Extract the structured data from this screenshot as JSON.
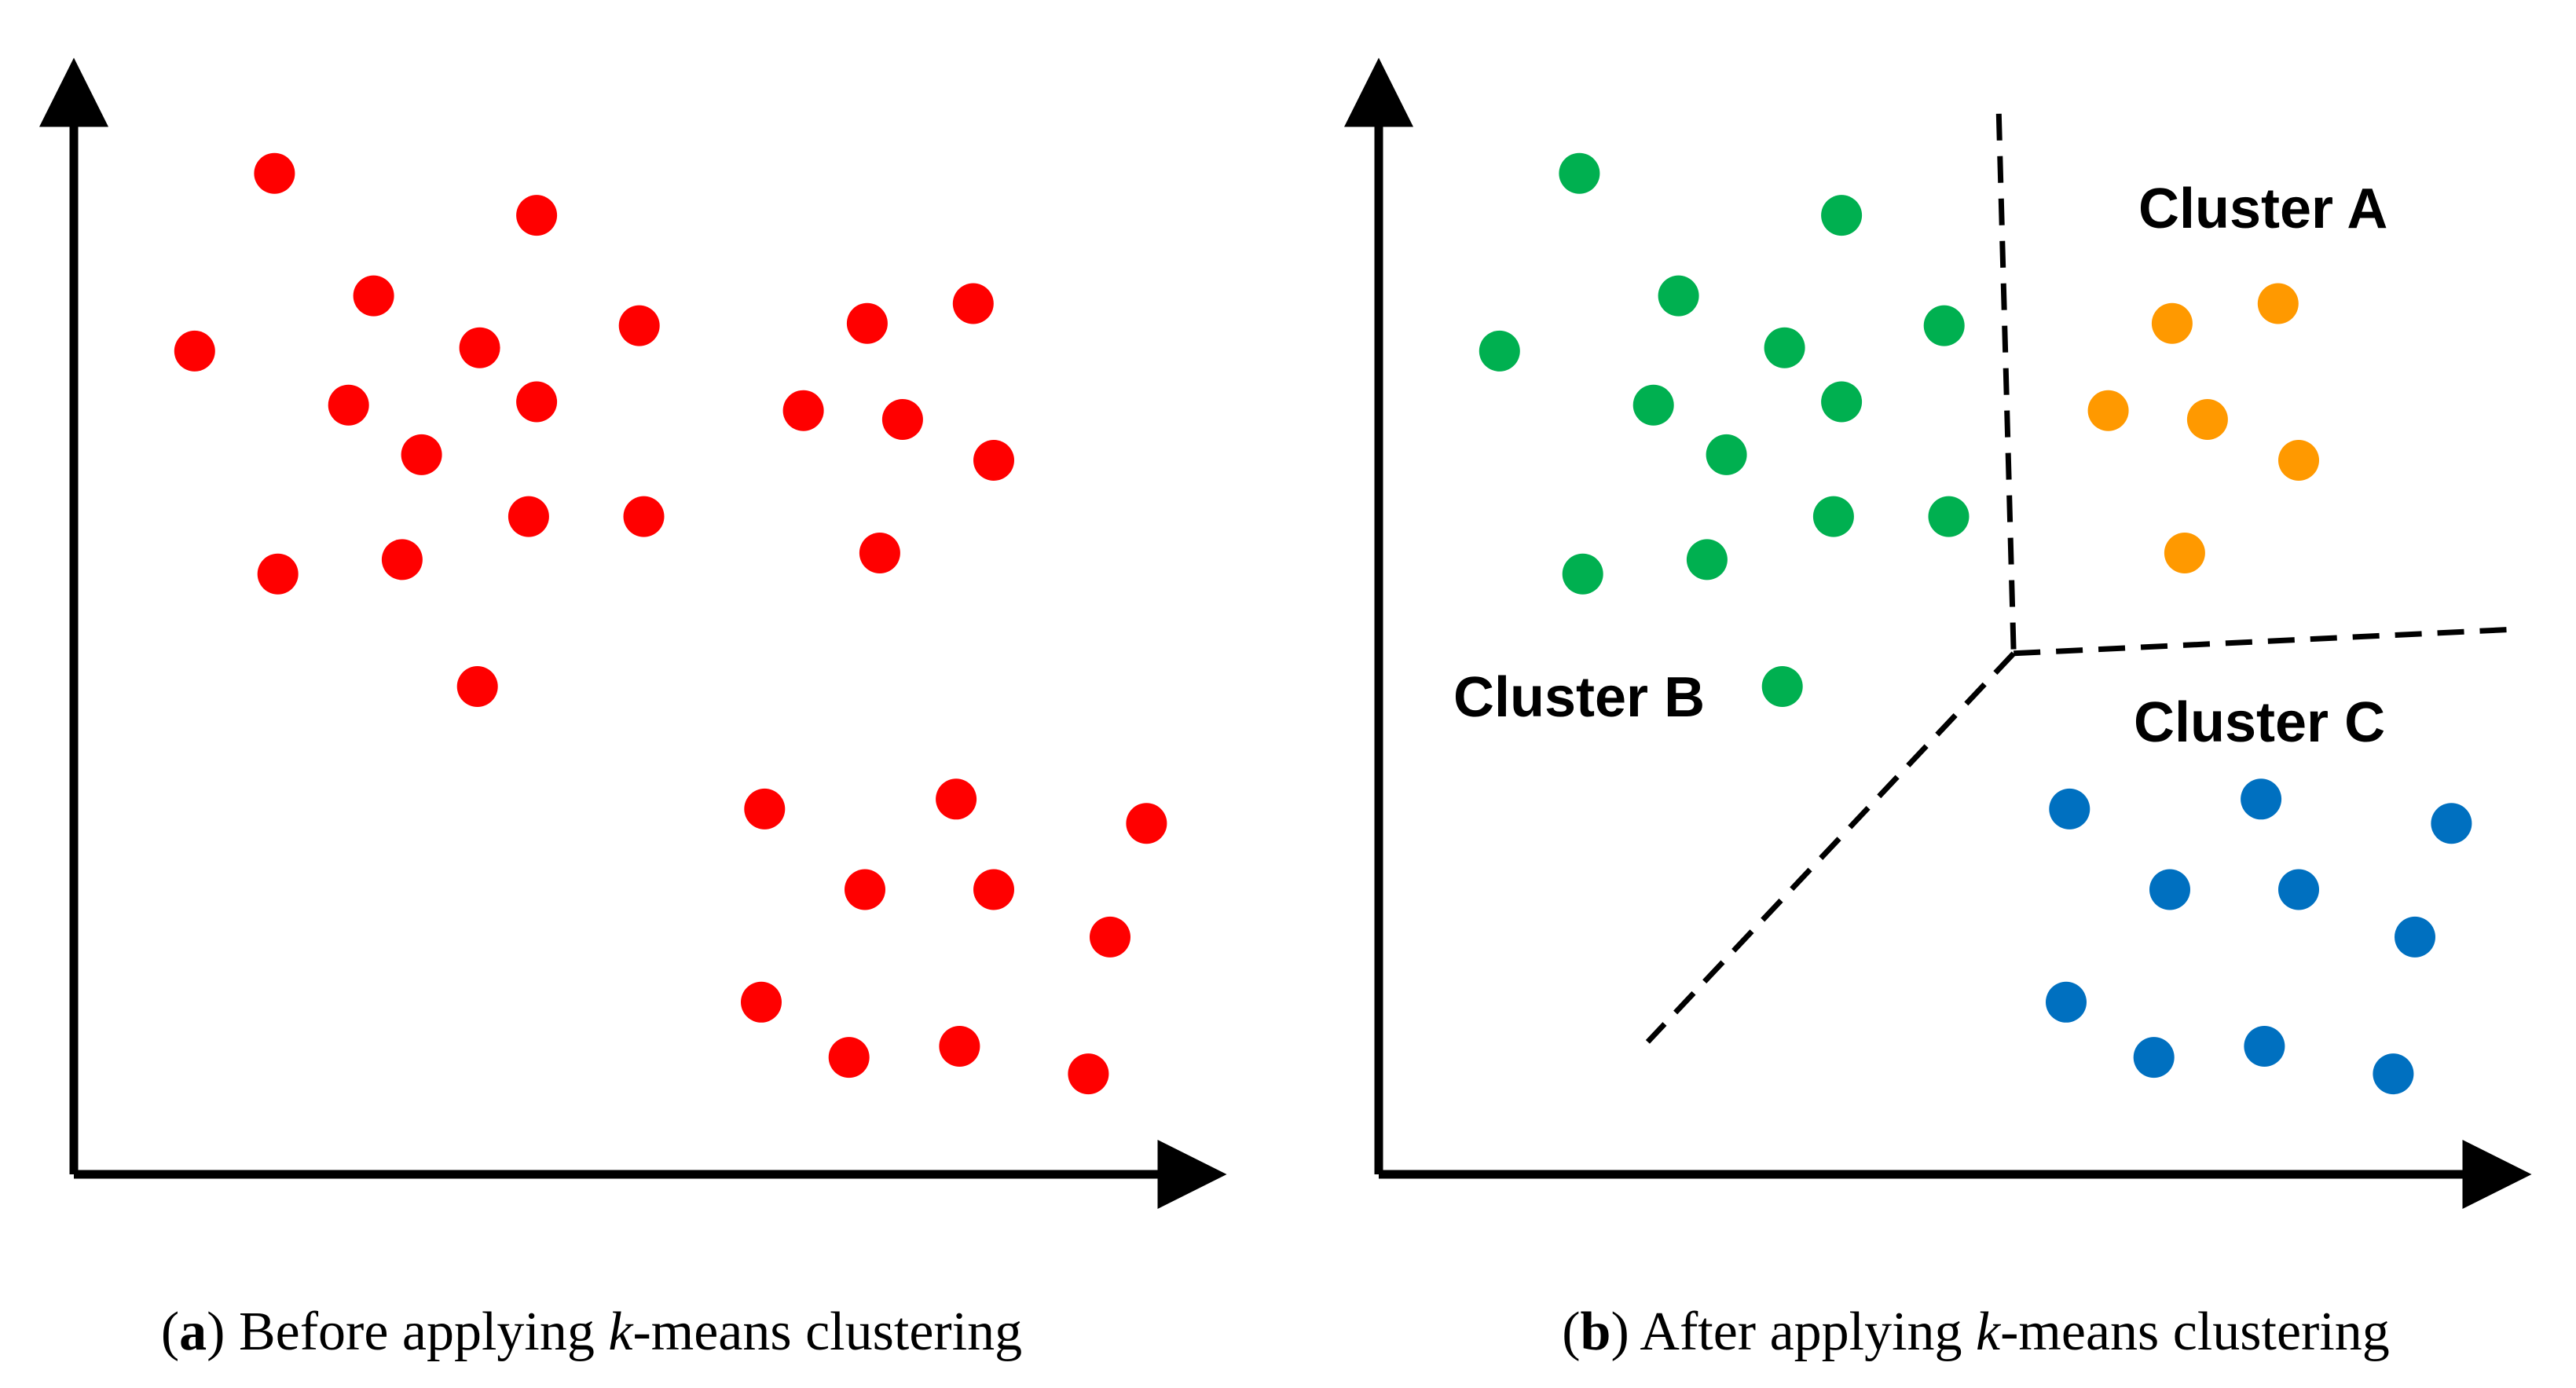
{
  "colors": {
    "raw": "#ff0000",
    "cluster_a": "#ff9900",
    "cluster_b": "#00b050",
    "cluster_c": "#0070c0",
    "axis": "#000000",
    "boundary": "#000000"
  },
  "panel_a": {
    "caption": {
      "open": "(",
      "letter": "a",
      "before": ") Before applying ",
      "k": "k",
      "after": "-means clustering"
    }
  },
  "panel_b": {
    "caption": {
      "open": "(",
      "letter": "b",
      "before": ") After applying ",
      "k": "k",
      "after": "-means clustering"
    },
    "labels": {
      "a": "Cluster A",
      "b": "Cluster B",
      "c": "Cluster C"
    }
  },
  "chart_data": [
    {
      "type": "scatter",
      "title": "",
      "xlabel": "",
      "ylabel": "",
      "xlim": [
        0,
        100
      ],
      "ylim": [
        0,
        100
      ],
      "grid": false,
      "series": [
        {
          "color": "#ff0000",
          "points": [
            [
              17.6,
              90.7
            ],
            [
              40.6,
              86.9
            ],
            [
              26.3,
              79.6
            ],
            [
              10.6,
              74.6
            ],
            [
              35.6,
              74.9
            ],
            [
              49.6,
              76.9
            ],
            [
              24.1,
              69.7
            ],
            [
              40.6,
              70.0
            ],
            [
              30.5,
              65.2
            ],
            [
              39.9,
              59.6
            ],
            [
              50.0,
              59.6
            ],
            [
              28.8,
              55.7
            ],
            [
              17.9,
              54.4
            ],
            [
              35.4,
              44.2
            ],
            [
              69.6,
              77.1
            ],
            [
              78.9,
              78.9
            ],
            [
              64.0,
              69.2
            ],
            [
              72.7,
              68.4
            ],
            [
              80.7,
              64.7
            ],
            [
              70.7,
              56.3
            ],
            [
              60.6,
              33.1
            ],
            [
              77.4,
              34.0
            ],
            [
              94.1,
              31.8
            ],
            [
              69.4,
              25.8
            ],
            [
              80.7,
              25.8
            ],
            [
              90.9,
              21.5
            ],
            [
              60.3,
              15.6
            ],
            [
              68.0,
              10.6
            ],
            [
              77.7,
              11.6
            ],
            [
              89.0,
              9.1
            ]
          ]
        }
      ]
    },
    {
      "type": "scatter",
      "title": "",
      "xlabel": "",
      "ylabel": "",
      "xlim": [
        0,
        100
      ],
      "ylim": [
        0,
        100
      ],
      "grid": false,
      "series": [
        {
          "name": "Cluster A",
          "color": "#ff9900",
          "points": [
            [
              69.6,
              77.1
            ],
            [
              78.9,
              78.9
            ],
            [
              64.0,
              69.2
            ],
            [
              72.7,
              68.4
            ],
            [
              80.7,
              64.7
            ],
            [
              70.7,
              56.3
            ]
          ]
        },
        {
          "name": "Cluster B",
          "color": "#00b050",
          "points": [
            [
              17.6,
              90.7
            ],
            [
              40.6,
              86.9
            ],
            [
              26.3,
              79.6
            ],
            [
              10.6,
              74.6
            ],
            [
              35.6,
              74.9
            ],
            [
              49.6,
              76.9
            ],
            [
              24.1,
              69.7
            ],
            [
              40.6,
              70.0
            ],
            [
              30.5,
              65.2
            ],
            [
              39.9,
              59.6
            ],
            [
              50.0,
              59.6
            ],
            [
              28.8,
              55.7
            ],
            [
              17.9,
              54.4
            ],
            [
              35.4,
              44.2
            ]
          ]
        },
        {
          "name": "Cluster C",
          "color": "#0070c0",
          "points": [
            [
              60.6,
              33.1
            ],
            [
              77.4,
              34.0
            ],
            [
              94.1,
              31.8
            ],
            [
              69.4,
              25.8
            ],
            [
              80.7,
              25.8
            ],
            [
              90.9,
              21.5
            ],
            [
              60.3,
              15.6
            ],
            [
              68.0,
              10.6
            ],
            [
              77.7,
              11.6
            ],
            [
              89.0,
              9.1
            ]
          ]
        }
      ],
      "boundaries": [
        [
          [
            54.4,
            96.1
          ],
          [
            55.7,
            47.2
          ]
        ],
        [
          [
            55.7,
            47.2
          ],
          [
            100.0,
            49.4
          ]
        ],
        [
          [
            55.7,
            47.2
          ],
          [
            23.6,
            12.0
          ]
        ]
      ]
    }
  ]
}
